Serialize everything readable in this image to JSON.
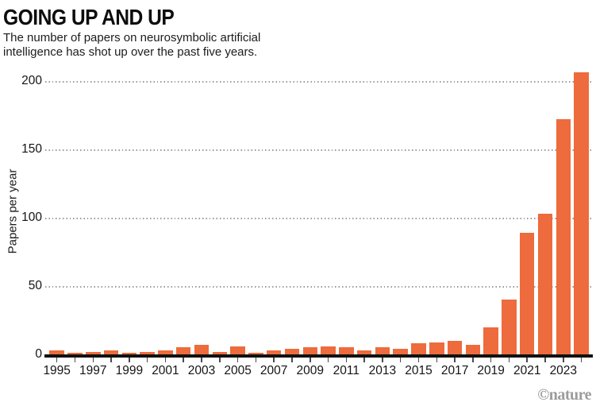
{
  "header": {
    "title": "GOING UP AND UP",
    "subtitle_lines": [
      "The number of papers on neurosymbolic artificial",
      "intelligence has shot up over the past five years."
    ]
  },
  "chart_data": {
    "type": "bar",
    "title": "GOING UP AND UP",
    "subtitle": "The number of papers on neurosymbolic artificial intelligence has shot up over the past five years.",
    "categories": [
      "1995",
      "1996",
      "1997",
      "1998",
      "1999",
      "2000",
      "2001",
      "2002",
      "2003",
      "2004",
      "2005",
      "2006",
      "2007",
      "2008",
      "2009",
      "2010",
      "2011",
      "2012",
      "2013",
      "2014",
      "2015",
      "2016",
      "2017",
      "2018",
      "2019",
      "2020",
      "2021",
      "2022",
      "2023",
      "2024"
    ],
    "values": [
      3,
      1,
      2,
      3,
      1,
      2,
      3,
      5,
      7,
      2,
      6,
      1,
      3,
      4,
      5,
      6,
      5,
      3,
      5,
      4,
      8,
      9,
      10,
      7,
      20,
      40,
      89,
      103,
      172,
      206
    ],
    "xlabel": "",
    "ylabel": "Papers per year",
    "yticks": [
      0,
      50,
      100,
      150,
      200
    ],
    "ylim": [
      0,
      210
    ],
    "xtick_labels_shown": [
      "1995",
      "1997",
      "1999",
      "2001",
      "2003",
      "2005",
      "2007",
      "2009",
      "2011",
      "2013",
      "2015",
      "2017",
      "2019",
      "2021",
      "2023"
    ],
    "grid": "horizontal dotted",
    "legend": "none",
    "bar_color": "#ED6B3C",
    "axis_color": "#111111",
    "gridline_color": "#9a9a9a",
    "tick_color": "#4a4a4a"
  },
  "footer": {
    "credit": "©nature"
  }
}
